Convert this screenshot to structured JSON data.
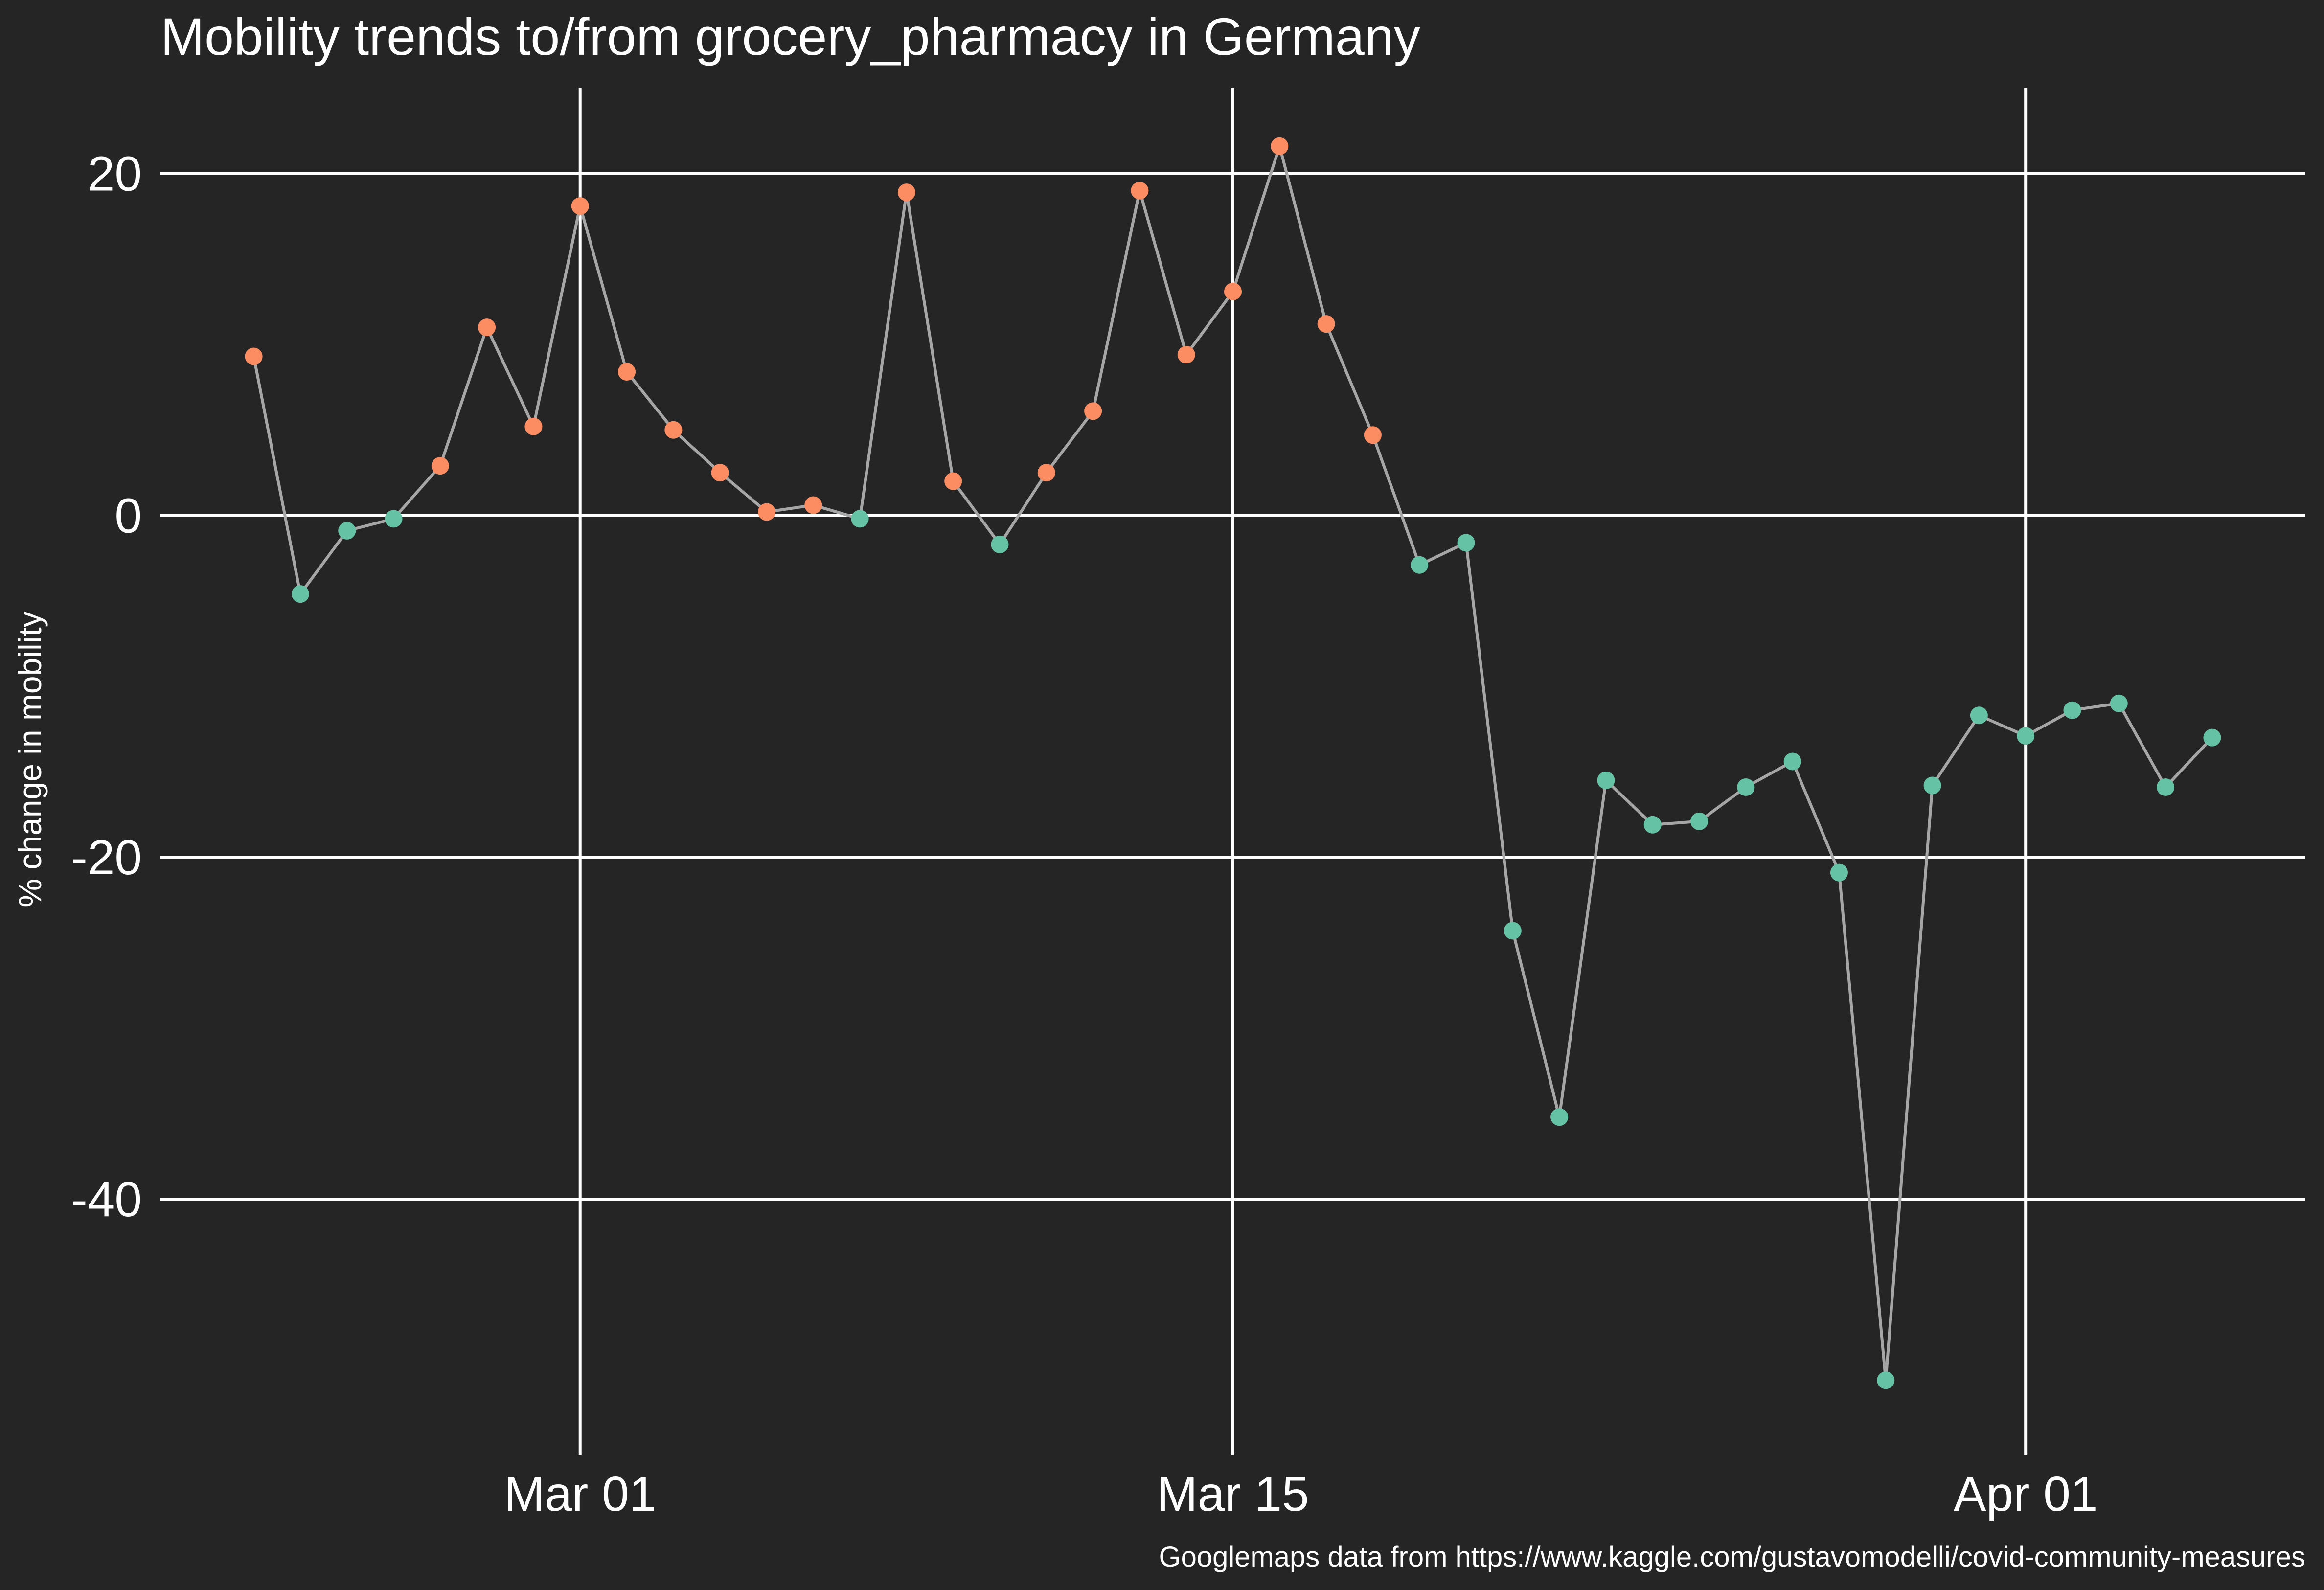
{
  "chart_data": {
    "type": "line",
    "title": "Mobility trends to/from grocery_pharmacy in Germany",
    "xlabel": "",
    "ylabel": "% change in mobility",
    "caption": "Googlemaps data from https://www.kaggle.com/gustavomodelli/covid-community-measures",
    "x_range": [
      "2020-02-21",
      "2020-04-07"
    ],
    "ylim": [
      -55,
      25
    ],
    "x_ticks": [
      {
        "date": "2020-03-01",
        "label": "Mar 01"
      },
      {
        "date": "2020-03-15",
        "label": "Mar 15"
      },
      {
        "date": "2020-04-01",
        "label": "Apr 01"
      }
    ],
    "y_ticks": [
      {
        "value": 20,
        "label": "20"
      },
      {
        "value": 0,
        "label": "0"
      },
      {
        "value": -20,
        "label": "-20"
      },
      {
        "value": -40,
        "label": "-40"
      }
    ],
    "grid": true,
    "legend": "none",
    "colors": {
      "background": "#252525",
      "grid": "#ffffff",
      "text": "#ffffff",
      "line": "#a6a6a6",
      "positive": "#fc8d62",
      "negative": "#66c2a5"
    },
    "series": [
      {
        "points": [
          {
            "x": "2020-02-23",
            "y": 9.3
          },
          {
            "x": "2020-02-24",
            "y": -4.6
          },
          {
            "x": "2020-02-25",
            "y": -0.9
          },
          {
            "x": "2020-02-26",
            "y": -0.2
          },
          {
            "x": "2020-02-27",
            "y": 2.9
          },
          {
            "x": "2020-02-28",
            "y": 11.0
          },
          {
            "x": "2020-02-29",
            "y": 5.2
          },
          {
            "x": "2020-03-01",
            "y": 18.1
          },
          {
            "x": "2020-03-02",
            "y": 8.4
          },
          {
            "x": "2020-03-03",
            "y": 5.0
          },
          {
            "x": "2020-03-04",
            "y": 2.5
          },
          {
            "x": "2020-03-05",
            "y": 0.2
          },
          {
            "x": "2020-03-06",
            "y": 0.6
          },
          {
            "x": "2020-03-07",
            "y": -0.2
          },
          {
            "x": "2020-03-08",
            "y": 18.9
          },
          {
            "x": "2020-03-09",
            "y": 2.0
          },
          {
            "x": "2020-03-10",
            "y": -1.7
          },
          {
            "x": "2020-03-11",
            "y": 2.5
          },
          {
            "x": "2020-03-12",
            "y": 6.1
          },
          {
            "x": "2020-03-13",
            "y": 19.0
          },
          {
            "x": "2020-03-14",
            "y": 9.4
          },
          {
            "x": "2020-03-15",
            "y": 13.1
          },
          {
            "x": "2020-03-16",
            "y": 21.6
          },
          {
            "x": "2020-03-17",
            "y": 11.2
          },
          {
            "x": "2020-03-18",
            "y": 4.7
          },
          {
            "x": "2020-03-19",
            "y": -2.9
          },
          {
            "x": "2020-03-20",
            "y": -1.6
          },
          {
            "x": "2020-03-21",
            "y": -24.3
          },
          {
            "x": "2020-03-22",
            "y": -35.2
          },
          {
            "x": "2020-03-23",
            "y": -15.5
          },
          {
            "x": "2020-03-24",
            "y": -18.1
          },
          {
            "x": "2020-03-25",
            "y": -17.9
          },
          {
            "x": "2020-03-26",
            "y": -15.9
          },
          {
            "x": "2020-03-27",
            "y": -14.4
          },
          {
            "x": "2020-03-28",
            "y": -20.9
          },
          {
            "x": "2020-03-29",
            "y": -50.6
          },
          {
            "x": "2020-03-30",
            "y": -15.8
          },
          {
            "x": "2020-03-31",
            "y": -11.7
          },
          {
            "x": "2020-04-01",
            "y": -12.9
          },
          {
            "x": "2020-04-02",
            "y": -11.4
          },
          {
            "x": "2020-04-03",
            "y": -11.0
          },
          {
            "x": "2020-04-04",
            "y": -15.9
          },
          {
            "x": "2020-04-05",
            "y": -13.0
          }
        ]
      }
    ]
  }
}
